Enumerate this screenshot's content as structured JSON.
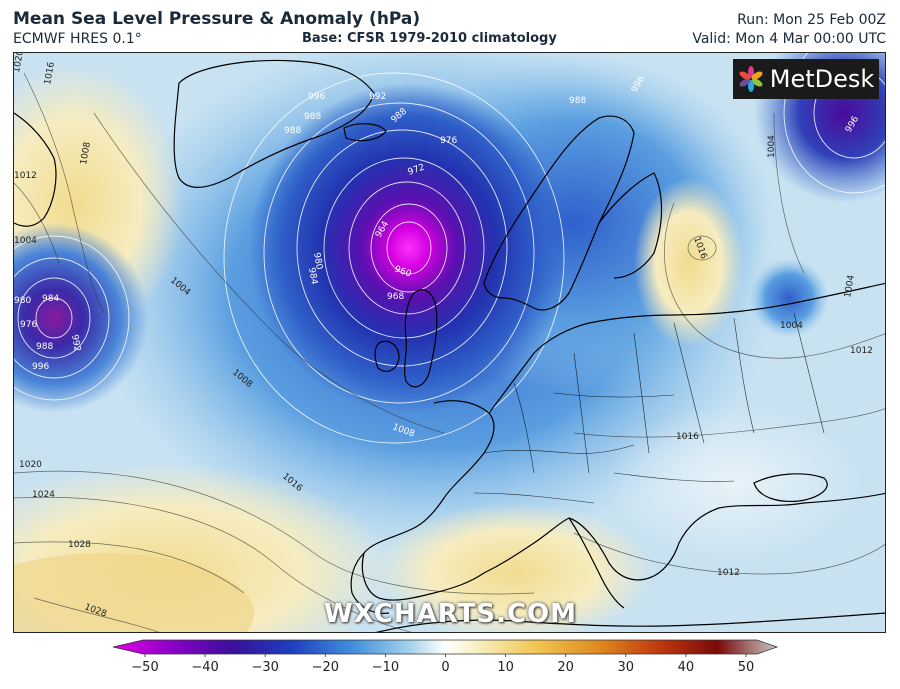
{
  "header": {
    "title": "Mean Sea Level Pressure & Anomaly (hPa)",
    "model": "ECMWF HRES 0.1°",
    "base": "Base: CFSR 1979-2010 climatology",
    "run": "Run: Mon 25 Feb 00Z",
    "valid": "Valid: Mon 4 Mar 00:00 UTC"
  },
  "logo": {
    "text": "MetDesk"
  },
  "watermark": "WXCHARTS.COM",
  "isobar_labels": [
    {
      "t": "1020"
    },
    {
      "t": "1016"
    },
    {
      "t": "1008"
    },
    {
      "t": "1012"
    },
    {
      "t": "1004"
    },
    {
      "t": "980"
    },
    {
      "t": "984"
    },
    {
      "t": "976"
    },
    {
      "t": "988"
    },
    {
      "t": "992"
    },
    {
      "t": "996"
    },
    {
      "t": "996"
    },
    {
      "t": "988"
    },
    {
      "t": "988"
    },
    {
      "t": "992"
    },
    {
      "t": "988"
    },
    {
      "t": "976"
    },
    {
      "t": "972"
    },
    {
      "t": "964"
    },
    {
      "t": "960"
    },
    {
      "t": "968"
    },
    {
      "t": "980"
    },
    {
      "t": "984"
    },
    {
      "t": "988"
    },
    {
      "t": "996"
    },
    {
      "t": "1004"
    },
    {
      "t": "1016"
    },
    {
      "t": "1004"
    },
    {
      "t": "1004"
    },
    {
      "t": "996"
    },
    {
      "t": "1004"
    },
    {
      "t": "1008"
    },
    {
      "t": "1008"
    },
    {
      "t": "1016"
    },
    {
      "t": "1020"
    },
    {
      "t": "1024"
    },
    {
      "t": "1028"
    },
    {
      "t": "1028"
    },
    {
      "t": "1016"
    },
    {
      "t": "1012"
    },
    {
      "t": "1012"
    }
  ],
  "colorbar": {
    "ticks": [
      "−50",
      "−40",
      "−30",
      "−20",
      "−10",
      "0",
      "10",
      "20",
      "30",
      "40",
      "50"
    ],
    "colors": [
      "#e000e0",
      "#8a00c8",
      "#3a0f9a",
      "#1f3fc0",
      "#3f8fdc",
      "#a9d4ee",
      "#f6efc0",
      "#f0c450",
      "#e08a20",
      "#c03a10",
      "#7a0a0a",
      "#c8c8c8"
    ]
  }
}
